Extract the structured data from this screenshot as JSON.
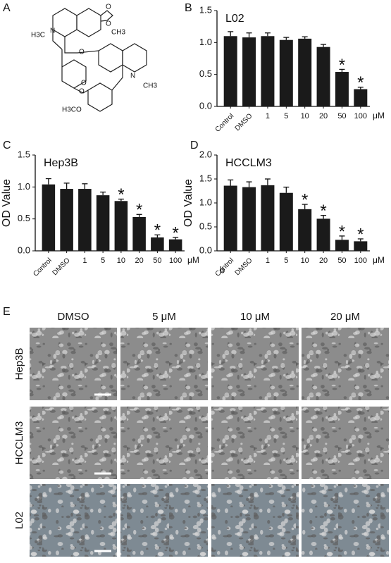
{
  "panel_labels": [
    "A",
    "B",
    "C",
    "D",
    "E"
  ],
  "structure": {
    "atom_labels": [
      "N",
      "H3C",
      "O",
      "O",
      "CH3",
      "O",
      "O",
      "N",
      "CH3",
      "O",
      "H3CO"
    ]
  },
  "chart_data": [
    {
      "type": "bar",
      "title": "L02",
      "color": "#1a1a1a",
      "categories": [
        "Control",
        "DMSO",
        "1",
        "5",
        "10",
        "20",
        "50",
        "100"
      ],
      "x_unit": "μM",
      "values": [
        1.1,
        1.08,
        1.1,
        1.04,
        1.06,
        0.93,
        0.54,
        0.27
      ],
      "errors": [
        0.07,
        0.07,
        0.05,
        0.04,
        0.03,
        0.04,
        0.04,
        0.03
      ],
      "significance": [
        null,
        null,
        null,
        null,
        null,
        null,
        "*",
        "*"
      ],
      "ylim": [
        0,
        1.5
      ],
      "yticks": [
        {
          "value": 0,
          "label": "0.0"
        },
        0.5,
        {
          "value": 1,
          "label": "1.0"
        },
        1.5
      ]
    },
    {
      "type": "bar",
      "title": "Hep3B",
      "y_label": "OD Value",
      "color": "#1a1a1a",
      "categories": [
        "Control",
        "DMSO",
        "1",
        "5",
        "10",
        "20",
        "50",
        "100"
      ],
      "x_unit": "μM",
      "values": [
        1.04,
        0.97,
        0.97,
        0.87,
        0.78,
        0.53,
        0.21,
        0.18
      ],
      "errors": [
        0.09,
        0.09,
        0.08,
        0.05,
        0.03,
        0.04,
        0.04,
        0.03
      ],
      "significance": [
        null,
        null,
        null,
        null,
        "*",
        "*",
        "*",
        "*"
      ],
      "ylim": [
        0,
        1.5
      ],
      "yticks": [
        {
          "value": 0,
          "label": "0.0"
        },
        0.5,
        {
          "value": 1,
          "label": "1.0"
        },
        1.5
      ]
    },
    {
      "type": "bar",
      "title": "HCCLM3",
      "y_label": "OD Value",
      "color": "#1a1a1a",
      "categories": [
        "Control",
        "DMSO",
        "1",
        "5",
        "10",
        "20",
        "50",
        "100"
      ],
      "x_unit": "μM",
      "values": [
        1.36,
        1.33,
        1.37,
        1.21,
        0.87,
        0.67,
        0.23,
        0.2
      ],
      "errors": [
        0.12,
        0.11,
        0.13,
        0.12,
        0.1,
        0.07,
        0.08,
        0.05
      ],
      "significance": [
        null,
        null,
        null,
        null,
        "*",
        "*",
        "*",
        "*"
      ],
      "annotation": "b",
      "ylim": [
        0,
        2
      ],
      "yticks": [
        {
          "value": 0,
          "label": "0.0"
        },
        0.5,
        {
          "value": 1,
          "label": "1.0"
        },
        1.5,
        {
          "value": 2,
          "label": "2.0"
        }
      ]
    }
  ],
  "micrographs": {
    "columns": [
      "DMSO",
      "5 μM",
      "10 μM",
      "20 μM"
    ],
    "rows": [
      "Hep3B",
      "HCCLM3",
      "L02"
    ]
  }
}
